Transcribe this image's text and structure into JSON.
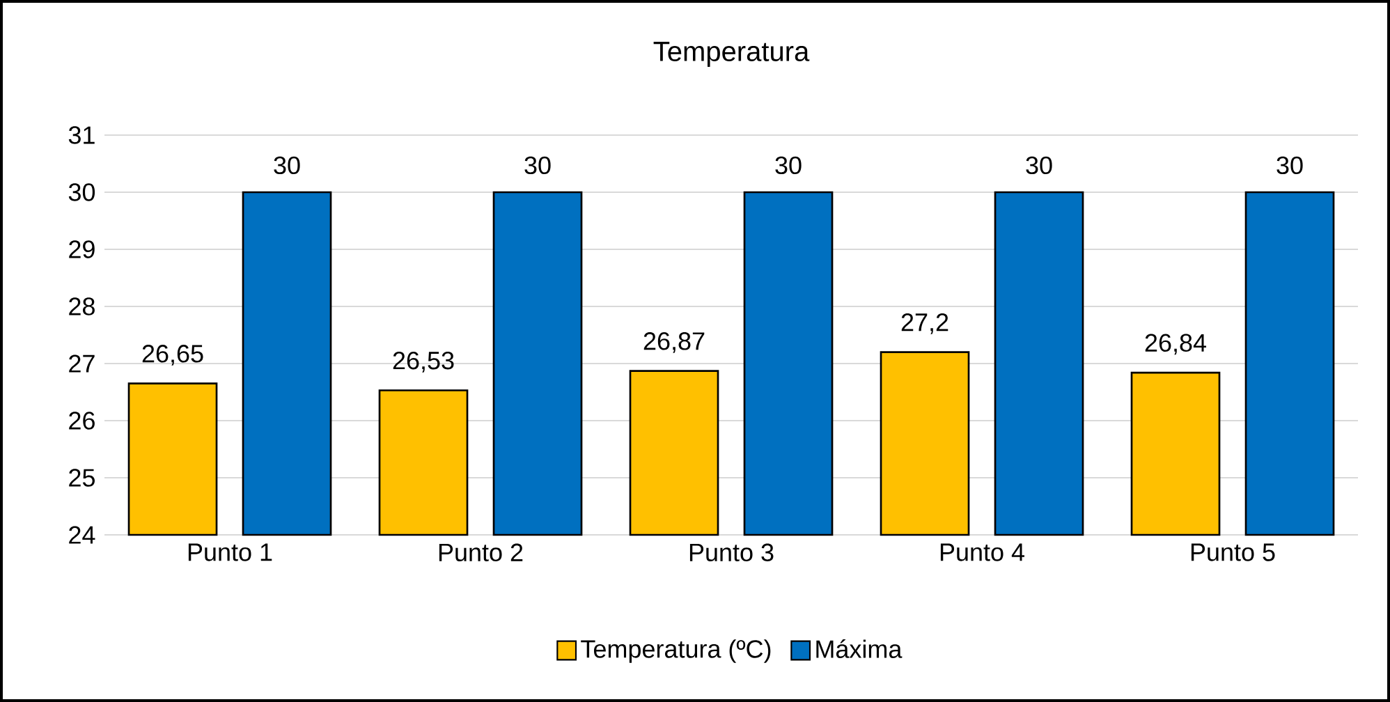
{
  "chart_data": {
    "type": "bar",
    "title": "Temperatura",
    "categories": [
      "Punto 1",
      "Punto 2",
      "Punto 3",
      "Punto 4",
      "Punto 5"
    ],
    "series": [
      {
        "name": "Temperatura (ºC)",
        "color": "#ffc000",
        "values": [
          26.65,
          26.53,
          26.87,
          27.2,
          26.84
        ],
        "value_labels": [
          "26,65",
          "26,53",
          "26,87",
          "27,2",
          "26,84"
        ]
      },
      {
        "name": "Máxima",
        "color": "#0070c0",
        "values": [
          30,
          30,
          30,
          30,
          30
        ],
        "value_labels": [
          "30",
          "30",
          "30",
          "30",
          "30"
        ]
      }
    ],
    "ylim": [
      24,
      31
    ],
    "yticks": [
      24,
      25,
      26,
      27,
      28,
      29,
      30,
      31
    ],
    "grid": "y",
    "legend": "bottom"
  }
}
